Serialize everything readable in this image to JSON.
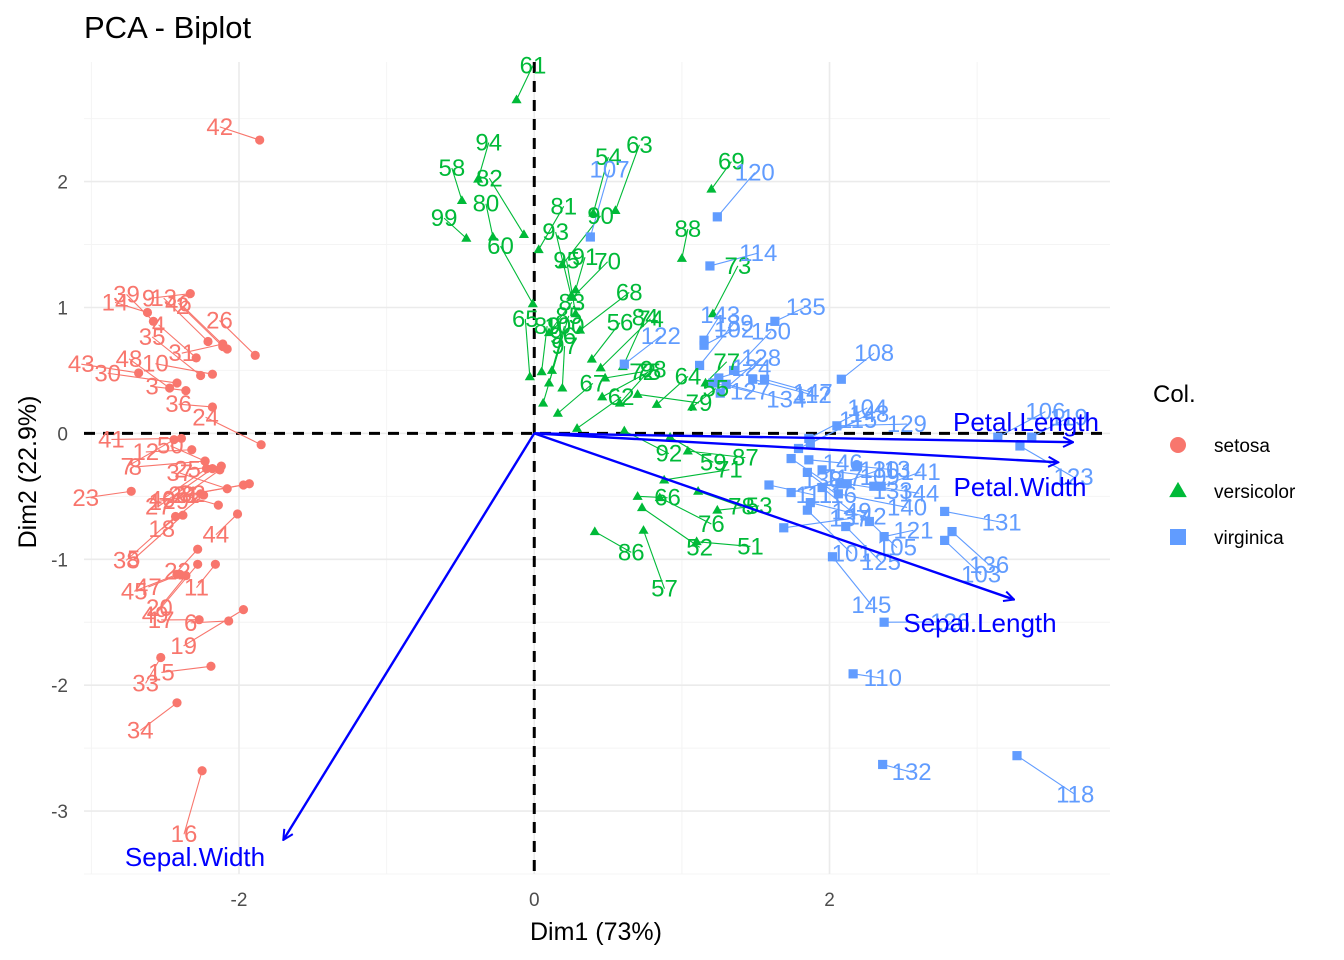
{
  "chart_data": {
    "type": "scatter",
    "title": "PCA - Biplot",
    "xlabel": "Dim1 (73%)",
    "ylabel": "Dim2 (22.9%)",
    "xlim": [
      -3.05,
      3.9
    ],
    "ylim": [
      -3.5,
      2.95
    ],
    "x_ticks": [
      -2,
      0,
      2
    ],
    "y_ticks": [
      -3,
      -2,
      -1,
      0,
      1,
      2
    ],
    "grid": true,
    "legend": {
      "title": "Col.",
      "position": "right",
      "items": [
        {
          "name": "setosa",
          "color": "#F8766D",
          "shape": "circle"
        },
        {
          "name": "versicolor",
          "color": "#00BA38",
          "shape": "triangle"
        },
        {
          "name": "virginica",
          "color": "#619CFF",
          "shape": "square"
        }
      ]
    },
    "series": [
      {
        "name": "setosa",
        "color": "#F8766D",
        "shape": "circle",
        "points": [
          {
            "label": "1",
            "x": -2.26,
            "y": -0.48
          },
          {
            "label": "2",
            "x": -2.08,
            "y": 0.67
          },
          {
            "label": "3",
            "x": -2.36,
            "y": 0.34
          },
          {
            "label": "4",
            "x": -2.29,
            "y": 0.6
          },
          {
            "label": "5",
            "x": -2.38,
            "y": -0.65
          },
          {
            "label": "6",
            "x": -2.07,
            "y": -1.49
          },
          {
            "label": "7",
            "x": -2.44,
            "y": -0.05
          },
          {
            "label": "8",
            "x": -2.23,
            "y": -0.22
          },
          {
            "label": "9",
            "x": -2.33,
            "y": 1.11
          },
          {
            "label": "10",
            "x": -2.18,
            "y": 0.47
          },
          {
            "label": "11",
            "x": -2.16,
            "y": -1.04
          },
          {
            "label": "12",
            "x": -2.32,
            "y": -0.13
          },
          {
            "label": "13",
            "x": -2.21,
            "y": 0.73
          },
          {
            "label": "14",
            "x": -2.62,
            "y": 0.96
          },
          {
            "label": "15",
            "x": -2.19,
            "y": -1.85
          },
          {
            "label": "16",
            "x": -2.25,
            "y": -2.68
          },
          {
            "label": "17",
            "x": -2.27,
            "y": -1.48
          },
          {
            "label": "18",
            "x": -2.24,
            "y": -0.49
          },
          {
            "label": "19",
            "x": -1.97,
            "y": -1.4
          },
          {
            "label": "20",
            "x": -2.36,
            "y": -1.13
          },
          {
            "label": "21",
            "x": -1.97,
            "y": -0.41
          },
          {
            "label": "22",
            "x": -2.28,
            "y": -0.92
          },
          {
            "label": "23",
            "x": -2.73,
            "y": -0.46
          },
          {
            "label": "24",
            "x": -1.85,
            "y": -0.09
          },
          {
            "label": "25",
            "x": -2.12,
            "y": -0.26
          },
          {
            "label": "26",
            "x": -1.89,
            "y": 0.62
          },
          {
            "label": "27",
            "x": -2.18,
            "y": -0.28
          },
          {
            "label": "28",
            "x": -2.14,
            "y": -0.57
          },
          {
            "label": "29",
            "x": -2.13,
            "y": -0.29
          },
          {
            "label": "30",
            "x": -2.42,
            "y": 0.4
          },
          {
            "label": "31",
            "x": -2.11,
            "y": 0.71
          },
          {
            "label": "32",
            "x": -1.93,
            "y": -0.4
          },
          {
            "label": "33",
            "x": -2.53,
            "y": -1.78
          },
          {
            "label": "34",
            "x": -2.42,
            "y": -2.14
          },
          {
            "label": "35",
            "x": -2.26,
            "y": 0.46
          },
          {
            "label": "36",
            "x": -2.18,
            "y": 0.21
          },
          {
            "label": "37",
            "x": -2.08,
            "y": -0.44
          },
          {
            "label": "38",
            "x": -2.43,
            "y": -0.66
          },
          {
            "label": "39",
            "x": -2.58,
            "y": 0.89
          },
          {
            "label": "40",
            "x": -2.22,
            "y": -0.28
          },
          {
            "label": "41",
            "x": -2.39,
            "y": -0.04
          },
          {
            "label": "42",
            "x": -1.86,
            "y": 2.33
          },
          {
            "label": "43",
            "x": -2.68,
            "y": 0.48
          },
          {
            "label": "44",
            "x": -2.01,
            "y": -0.64
          },
          {
            "label": "45",
            "x": -2.42,
            "y": -1.12
          },
          {
            "label": "46",
            "x": -2.11,
            "y": 0.69
          },
          {
            "label": "47",
            "x": -2.4,
            "y": -1.12
          },
          {
            "label": "48",
            "x": -2.47,
            "y": 0.36
          },
          {
            "label": "49",
            "x": -2.28,
            "y": -1.04
          },
          {
            "label": "50",
            "x": -2.23,
            "y": -0.22
          }
        ]
      },
      {
        "name": "versicolor",
        "color": "#00BA38",
        "shape": "triangle",
        "points": [
          {
            "label": "51",
            "x": 1.1,
            "y": -0.86
          },
          {
            "label": "52",
            "x": 0.73,
            "y": -0.59
          },
          {
            "label": "53",
            "x": 1.24,
            "y": -0.61
          },
          {
            "label": "54",
            "x": 0.4,
            "y": 1.75
          },
          {
            "label": "55",
            "x": 1.07,
            "y": 0.21
          },
          {
            "label": "56",
            "x": 0.39,
            "y": 0.59
          },
          {
            "label": "57",
            "x": 0.74,
            "y": -0.77
          },
          {
            "label": "58",
            "x": -0.49,
            "y": 1.85
          },
          {
            "label": "59",
            "x": 0.92,
            "y": -0.03
          },
          {
            "label": "60",
            "x": -0.01,
            "y": 1.03
          },
          {
            "label": "61",
            "x": -0.12,
            "y": 2.65
          },
          {
            "label": "62",
            "x": 0.29,
            "y": 0.04
          },
          {
            "label": "63",
            "x": 0.55,
            "y": 1.77
          },
          {
            "label": "64",
            "x": 0.83,
            "y": 0.23
          },
          {
            "label": "65",
            "x": -0.03,
            "y": 0.45
          },
          {
            "label": "66",
            "x": 0.7,
            "y": -0.5
          },
          {
            "label": "67",
            "x": 0.16,
            "y": 0.16
          },
          {
            "label": "68",
            "x": 0.31,
            "y": 0.82
          },
          {
            "label": "69",
            "x": 1.2,
            "y": 1.94
          },
          {
            "label": "70",
            "x": 0.26,
            "y": 1.08
          },
          {
            "label": "71",
            "x": 0.88,
            "y": -0.37
          },
          {
            "label": "72",
            "x": 0.48,
            "y": 0.44
          },
          {
            "label": "73",
            "x": 1.21,
            "y": 0.95
          },
          {
            "label": "74",
            "x": 0.45,
            "y": 0.52
          },
          {
            "label": "75",
            "x": 0.58,
            "y": 0.24
          },
          {
            "label": "76",
            "x": 0.85,
            "y": -0.51
          },
          {
            "label": "77",
            "x": 1.16,
            "y": 0.4
          },
          {
            "label": "78",
            "x": 1.11,
            "y": -0.46
          },
          {
            "label": "79",
            "x": 0.7,
            "y": 0.31
          },
          {
            "label": "80",
            "x": -0.28,
            "y": 1.56
          },
          {
            "label": "81",
            "x": 0.03,
            "y": 1.46
          },
          {
            "label": "82",
            "x": -0.07,
            "y": 1.58
          },
          {
            "label": "83",
            "x": 0.1,
            "y": 0.8
          },
          {
            "label": "84",
            "x": 0.6,
            "y": 0.53
          },
          {
            "label": "85",
            "x": 0.1,
            "y": 0.4
          },
          {
            "label": "86",
            "x": 0.41,
            "y": -0.78
          },
          {
            "label": "87",
            "x": 1.04,
            "y": -0.14
          },
          {
            "label": "88",
            "x": 1.0,
            "y": 1.39
          },
          {
            "label": "89",
            "x": 0.05,
            "y": 0.49
          },
          {
            "label": "90",
            "x": 0.19,
            "y": 1.34
          },
          {
            "label": "91",
            "x": 0.28,
            "y": 1.14
          },
          {
            "label": "92",
            "x": 0.61,
            "y": 0.02
          },
          {
            "label": "93",
            "x": 0.25,
            "y": 1.09
          },
          {
            "label": "94",
            "x": -0.38,
            "y": 2.02
          },
          {
            "label": "95",
            "x": 0.28,
            "y": 0.95
          },
          {
            "label": "96",
            "x": 0.06,
            "y": 0.24
          },
          {
            "label": "97",
            "x": 0.19,
            "y": 0.36
          },
          {
            "label": "98",
            "x": 0.46,
            "y": 0.29
          },
          {
            "label": "99",
            "x": -0.46,
            "y": 1.55
          },
          {
            "label": "100",
            "x": 0.12,
            "y": 0.5
          }
        ]
      },
      {
        "name": "virginica",
        "color": "#619CFF",
        "shape": "square",
        "points": [
          {
            "label": "101",
            "x": 1.85,
            "y": -0.61
          },
          {
            "label": "102",
            "x": 1.15,
            "y": 0.7
          },
          {
            "label": "103",
            "x": 2.78,
            "y": -0.85
          },
          {
            "label": "104",
            "x": 1.86,
            "y": -0.04
          },
          {
            "label": "105",
            "x": 2.27,
            "y": -0.7
          },
          {
            "label": "106",
            "x": 3.14,
            "y": -0.03
          },
          {
            "label": "107",
            "x": 0.38,
            "y": 1.56
          },
          {
            "label": "108",
            "x": 2.08,
            "y": 0.43
          },
          {
            "label": "109",
            "x": 1.95,
            "y": -0.29
          },
          {
            "label": "110",
            "x": 2.16,
            "y": -1.91
          },
          {
            "label": "111",
            "x": 1.59,
            "y": -0.41
          },
          {
            "label": "112",
            "x": 1.48,
            "y": 0.43
          },
          {
            "label": "113",
            "x": 2.19,
            "y": -0.26
          },
          {
            "label": "114",
            "x": 1.19,
            "y": 1.33
          },
          {
            "label": "115",
            "x": 1.79,
            "y": -0.12
          },
          {
            "label": "116",
            "x": 1.85,
            "y": -0.31
          },
          {
            "label": "117",
            "x": 1.74,
            "y": -0.47
          },
          {
            "label": "118",
            "x": 3.27,
            "y": -2.56
          },
          {
            "label": "119",
            "x": 3.37,
            "y": -0.03
          },
          {
            "label": "120",
            "x": 1.24,
            "y": 1.72
          },
          {
            "label": "121",
            "x": 2.37,
            "y": -0.82
          },
          {
            "label": "122",
            "x": 0.61,
            "y": 0.55
          },
          {
            "label": "123",
            "x": 3.29,
            "y": -0.1
          },
          {
            "label": "124",
            "x": 1.25,
            "y": 0.44
          },
          {
            "label": "125",
            "x": 2.11,
            "y": -0.74
          },
          {
            "label": "126",
            "x": 2.37,
            "y": -1.5
          },
          {
            "label": "127",
            "x": 1.21,
            "y": 0.4
          },
          {
            "label": "128",
            "x": 1.26,
            "y": 0.32
          },
          {
            "label": "129",
            "x": 2.05,
            "y": 0.06
          },
          {
            "label": "130",
            "x": 2.07,
            "y": -0.4
          },
          {
            "label": "131",
            "x": 2.78,
            "y": -0.62
          },
          {
            "label": "132",
            "x": 2.36,
            "y": -2.63
          },
          {
            "label": "133",
            "x": 2.12,
            "y": -0.4
          },
          {
            "label": "134",
            "x": 1.3,
            "y": 0.39
          },
          {
            "label": "135",
            "x": 1.63,
            "y": 0.89
          },
          {
            "label": "136",
            "x": 2.83,
            "y": -0.78
          },
          {
            "label": "137",
            "x": 1.69,
            "y": -0.75
          },
          {
            "label": "138",
            "x": 1.74,
            "y": -0.2
          },
          {
            "label": "139",
            "x": 1.12,
            "y": 0.54
          },
          {
            "label": "140",
            "x": 2.06,
            "y": -0.48
          },
          {
            "label": "141",
            "x": 2.35,
            "y": -0.42
          },
          {
            "label": "142",
            "x": 1.87,
            "y": -0.55
          },
          {
            "label": "143",
            "x": 1.15,
            "y": 0.74
          },
          {
            "label": "144",
            "x": 2.3,
            "y": -0.42
          },
          {
            "label": "145",
            "x": 2.02,
            "y": -0.98
          },
          {
            "label": "146",
            "x": 1.86,
            "y": -0.21
          },
          {
            "label": "147",
            "x": 1.56,
            "y": 0.43
          },
          {
            "label": "148",
            "x": 1.87,
            "y": -0.08
          },
          {
            "label": "149",
            "x": 1.95,
            "y": -0.43
          },
          {
            "label": "150",
            "x": 1.35,
            "y": 0.5
          }
        ]
      }
    ],
    "variables": [
      {
        "name": "Sepal.Length",
        "x": 3.25,
        "y": -1.32
      },
      {
        "name": "Sepal.Width",
        "x": -1.7,
        "y": -3.23
      },
      {
        "name": "Petal.Length",
        "x": 3.65,
        "y": -0.07
      },
      {
        "name": "Petal.Width",
        "x": 3.55,
        "y": -0.23
      }
    ],
    "reference_lines": {
      "x": 0,
      "y": 0,
      "style": "dashed"
    }
  }
}
